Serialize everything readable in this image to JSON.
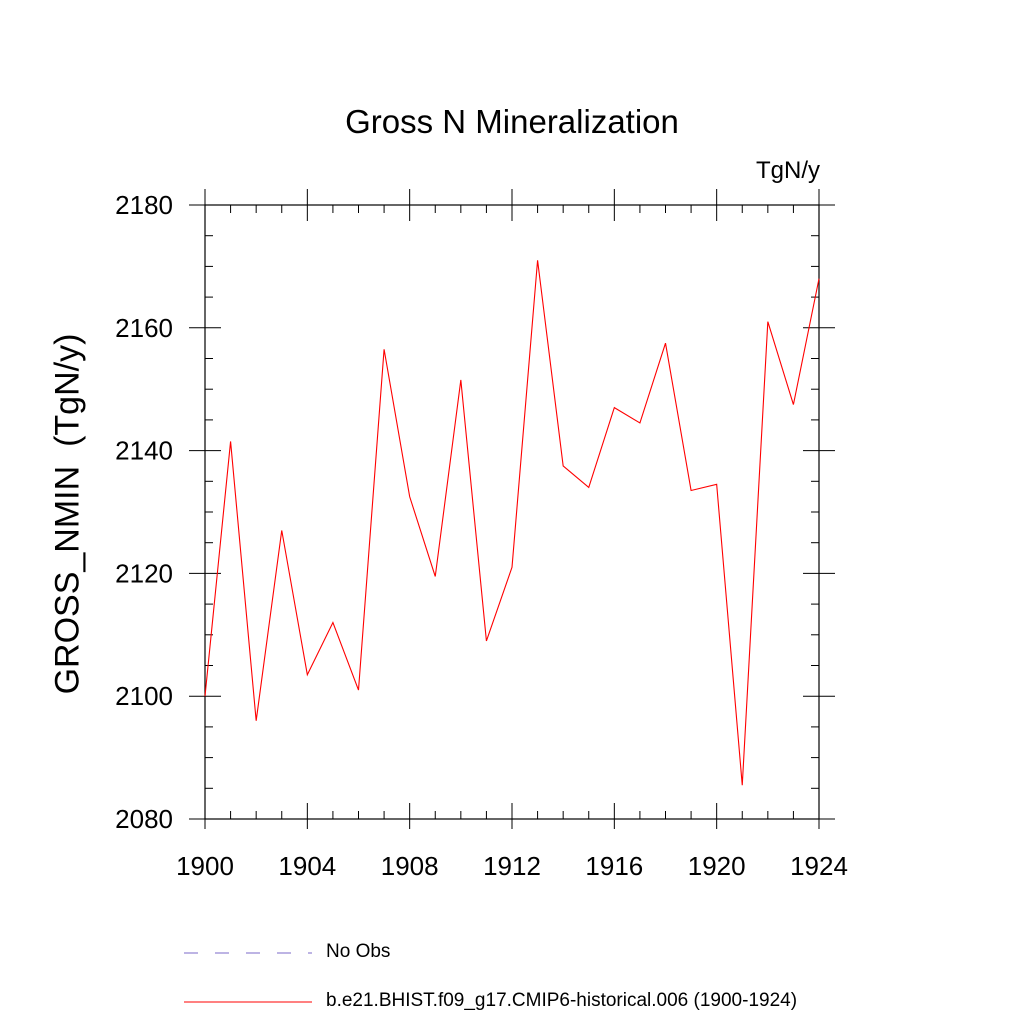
{
  "chart_data": {
    "type": "line",
    "title": "Gross N Mineralization",
    "units_label": "TgN/y",
    "xlabel": "",
    "ylabel": "GROSS_NMIN  (TgN/y)",
    "xlim": [
      1900,
      1924
    ],
    "ylim": [
      2080,
      2180
    ],
    "x_ticks": [
      1900,
      1904,
      1908,
      1912,
      1916,
      1920,
      1924
    ],
    "y_ticks": [
      2080,
      2100,
      2120,
      2140,
      2160,
      2180
    ],
    "x_minor_step": 1,
    "y_minor_step": 5,
    "series": [
      {
        "name": "b.e21.BHIST.f09_g17.CMIP6-historical.006 (1900-1924)",
        "color": "#ff0000",
        "dash": "solid",
        "x": [
          1900,
          1901,
          1902,
          1903,
          1904,
          1905,
          1906,
          1907,
          1908,
          1909,
          1910,
          1911,
          1912,
          1913,
          1914,
          1915,
          1916,
          1917,
          1918,
          1919,
          1920,
          1921,
          1922,
          1923,
          1924
        ],
        "values": [
          2100,
          2141.5,
          2096,
          2127,
          2103.5,
          2112,
          2101,
          2156.5,
          2132.5,
          2119.5,
          2151.5,
          2109,
          2121,
          2171,
          2137.5,
          2134,
          2147,
          2144.5,
          2157.5,
          2133.5,
          2134.5,
          2085.5,
          2161,
          2147.5,
          2168
        ]
      }
    ],
    "legend": [
      {
        "label": "No Obs",
        "color": "#7b68c8",
        "dash": "dashed"
      },
      {
        "label": "b.e21.BHIST.f09_g17.CMIP6-historical.006 (1900-1924)",
        "color": "#ff0000",
        "dash": "solid"
      }
    ]
  }
}
